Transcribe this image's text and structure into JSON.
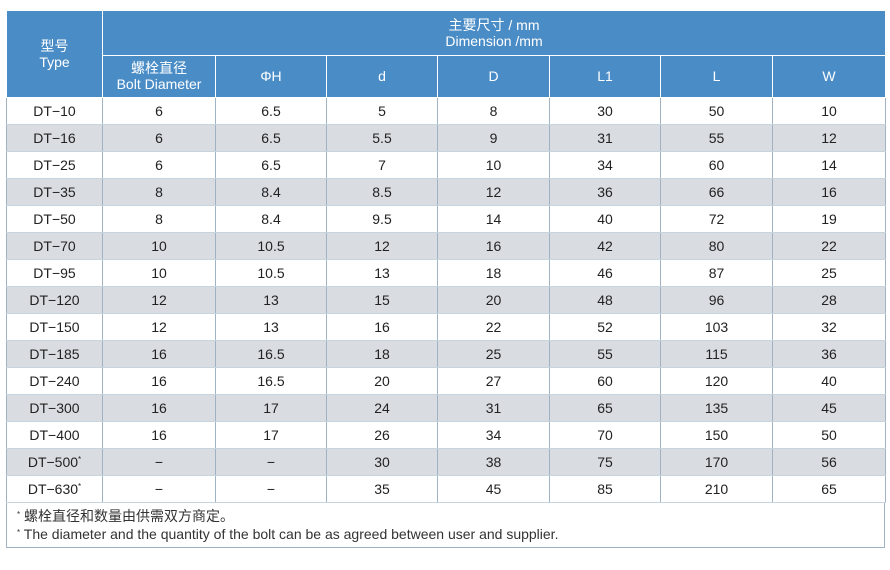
{
  "header": {
    "type_zh": "型号",
    "type_en": "Type",
    "dim_zh": "主要尺寸 / mm",
    "dim_en": "Dimension /mm",
    "bolt_zh": "螺栓直径",
    "bolt_en": "Bolt Diameter",
    "columns": [
      "ΦH",
      "d",
      "D",
      "L1",
      "L",
      "W"
    ]
  },
  "rows": [
    {
      "type": "DT−10",
      "mark": "",
      "bolt": "6",
      "h": "6.5",
      "d": "5",
      "D": "8",
      "l1": "30",
      "l": "50",
      "w": "10"
    },
    {
      "type": "DT−16",
      "mark": "",
      "bolt": "6",
      "h": "6.5",
      "d": "5.5",
      "D": "9",
      "l1": "31",
      "l": "55",
      "w": "12"
    },
    {
      "type": "DT−25",
      "mark": "",
      "bolt": "6",
      "h": "6.5",
      "d": "7",
      "D": "10",
      "l1": "34",
      "l": "60",
      "w": "14"
    },
    {
      "type": "DT−35",
      "mark": "",
      "bolt": "8",
      "h": "8.4",
      "d": "8.5",
      "D": "12",
      "l1": "36",
      "l": "66",
      "w": "16"
    },
    {
      "type": "DT−50",
      "mark": "",
      "bolt": "8",
      "h": "8.4",
      "d": "9.5",
      "D": "14",
      "l1": "40",
      "l": "72",
      "w": "19"
    },
    {
      "type": "DT−70",
      "mark": "",
      "bolt": "10",
      "h": "10.5",
      "d": "12",
      "D": "16",
      "l1": "42",
      "l": "80",
      "w": "22"
    },
    {
      "type": "DT−95",
      "mark": "",
      "bolt": "10",
      "h": "10.5",
      "d": "13",
      "D": "18",
      "l1": "46",
      "l": "87",
      "w": "25"
    },
    {
      "type": "DT−120",
      "mark": "",
      "bolt": "12",
      "h": "13",
      "d": "15",
      "D": "20",
      "l1": "48",
      "l": "96",
      "w": "28"
    },
    {
      "type": "DT−150",
      "mark": "",
      "bolt": "12",
      "h": "13",
      "d": "16",
      "D": "22",
      "l1": "52",
      "l": "103",
      "w": "32"
    },
    {
      "type": "DT−185",
      "mark": "",
      "bolt": "16",
      "h": "16.5",
      "d": "18",
      "D": "25",
      "l1": "55",
      "l": "115",
      "w": "36"
    },
    {
      "type": "DT−240",
      "mark": "",
      "bolt": "16",
      "h": "16.5",
      "d": "20",
      "D": "27",
      "l1": "60",
      "l": "120",
      "w": "40"
    },
    {
      "type": "DT−300",
      "mark": "",
      "bolt": "16",
      "h": "17",
      "d": "24",
      "D": "31",
      "l1": "65",
      "l": "135",
      "w": "45"
    },
    {
      "type": "DT−400",
      "mark": "",
      "bolt": "16",
      "h": "17",
      "d": "26",
      "D": "34",
      "l1": "70",
      "l": "150",
      "w": "50"
    },
    {
      "type": "DT−500",
      "mark": "*",
      "bolt": "−",
      "h": "−",
      "d": "30",
      "D": "38",
      "l1": "75",
      "l": "170",
      "w": "56"
    },
    {
      "type": "DT−630",
      "mark": "*",
      "bolt": "−",
      "h": "−",
      "d": "35",
      "D": "45",
      "l1": "85",
      "l": "210",
      "w": "65"
    }
  ],
  "footnote": {
    "mark": "*",
    "zh": "螺栓直径和数量由供需双方商定。",
    "en": "The diameter and the quantity of the bolt can be as agreed between user and supplier."
  },
  "colors": {
    "header_bg": "#4a8cc6",
    "shade_bg": "#d9dde2",
    "border": "#9fb3c4"
  }
}
